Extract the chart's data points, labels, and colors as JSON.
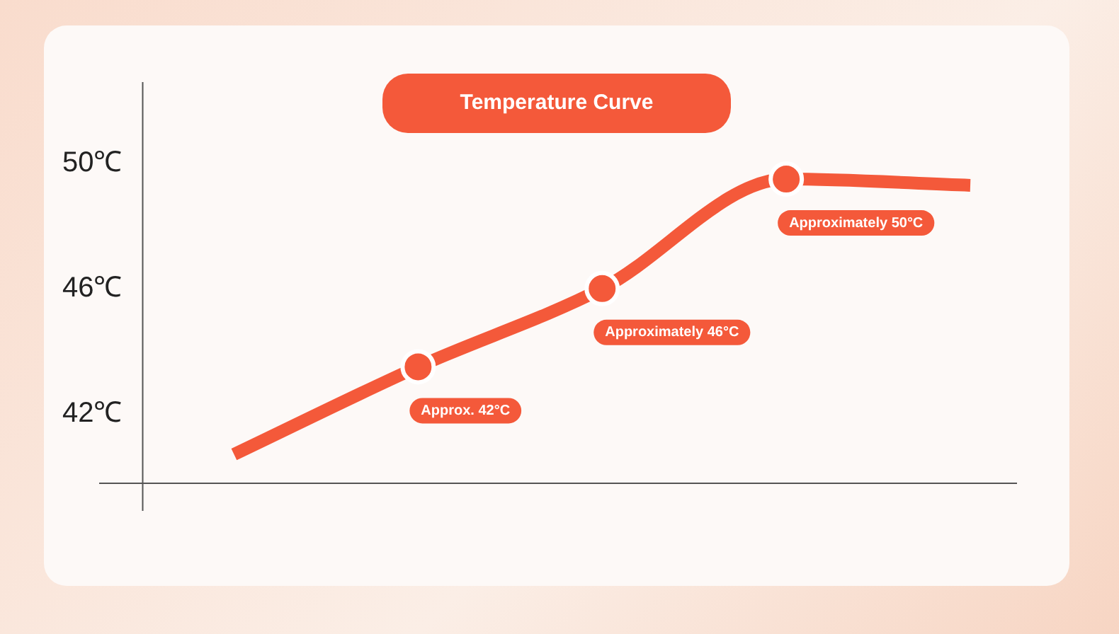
{
  "chart_data": {
    "type": "line",
    "title": "Temperature Curve",
    "categories": [
      null,
      null,
      null,
      null,
      null
    ],
    "series": [
      {
        "color": "#f4593a",
        "values": [
          40.7,
          43.5,
          46.0,
          49.5,
          49.3
        ]
      }
    ],
    "ylim": [
      39.8,
      52.6
    ],
    "yticks": [
      {
        "value": 42,
        "label": "42℃"
      },
      {
        "value": 46,
        "label": "46℃"
      },
      {
        "value": 50,
        "label": "50℃"
      }
    ],
    "tick_labels": "y",
    "marker": "circle",
    "line_style": "solid",
    "annotations": [
      "Approx. 42°C",
      "Approximately 46°C",
      "Approximately 50°C"
    ]
  }
}
